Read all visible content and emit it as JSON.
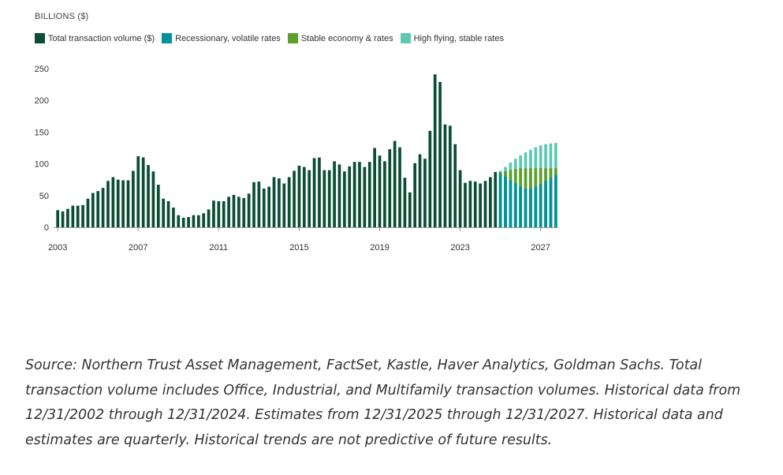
{
  "chart_data": {
    "type": "bar",
    "ylabel": "BILLIONS ($)",
    "ylim": [
      0,
      250
    ],
    "yticks": [
      0,
      50,
      100,
      150,
      200,
      250
    ],
    "xticks": [
      "2003",
      "2007",
      "2011",
      "2015",
      "2019",
      "2023",
      "2027"
    ],
    "start_quarter": "2003-Q1",
    "colors": {
      "total": "#0b4d35",
      "recessionary": "#00929b",
      "stable": "#5e9e2a",
      "high_flying": "#5dc8b4"
    },
    "legend": [
      {
        "key": "total",
        "label": "Total transaction volume ($)"
      },
      {
        "key": "recessionary",
        "label": "Recessionary, volatile rates"
      },
      {
        "key": "stable",
        "label": "Stable economy & rates"
      },
      {
        "key": "high_flying",
        "label": "High flying, stable rates"
      }
    ],
    "series": [
      {
        "name": "Total transaction volume ($)",
        "values": [
          27,
          25,
          29,
          34,
          34,
          35,
          45,
          54,
          57,
          62,
          73,
          79,
          75,
          74,
          74,
          89,
          112,
          110,
          98,
          88,
          67,
          45,
          41,
          31,
          19,
          15,
          16,
          19,
          19,
          22,
          28,
          42,
          41,
          41,
          48,
          51,
          48,
          46,
          53,
          71,
          72,
          61,
          64,
          79,
          77,
          69,
          79,
          89,
          97,
          95,
          90,
          109,
          110,
          90,
          90,
          104,
          99,
          88,
          96,
          103,
          103,
          95,
          103,
          125,
          113,
          104,
          123,
          136,
          126,
          78,
          55,
          101,
          115,
          108,
          152,
          241,
          229,
          162,
          160,
          131,
          90,
          70,
          73,
          72,
          69,
          73,
          79,
          87
        ]
      },
      {
        "name": "Recessionary, volatile rates",
        "values": [
          85,
          80,
          74,
          69,
          64,
          61,
          61,
          64,
          68,
          73,
          78,
          83
        ]
      },
      {
        "name": "Stable economy & rates",
        "values": [
          87,
          88,
          90,
          92,
          93,
          93,
          93,
          93,
          93,
          93,
          93,
          93
        ]
      },
      {
        "name": "High flying, stable rates",
        "values": [
          89,
          95,
          102,
          108,
          113,
          118,
          122,
          126,
          129,
          131,
          132,
          133
        ]
      }
    ]
  },
  "source_note": "Source: Northern Trust Asset Management, FactSet, Kastle, Haver Analytics, Goldman Sachs. Total transaction volume includes Office, Industrial, and Multifamily transaction volumes. Historical data from 12/31/2002 through 12/31/2024. Estimates from 12/31/2025 through 12/31/2027. Historical data and estimates are quarterly. Historical trends are not predictive of future results."
}
